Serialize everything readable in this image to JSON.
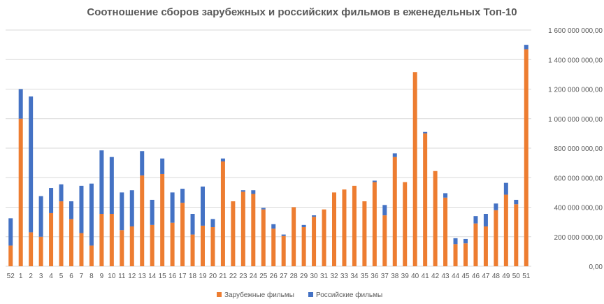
{
  "chart_data": {
    "type": "bar",
    "stacked": true,
    "title": "Соотношение сборов зарубежных и российских фильмов в еженедельных Топ-10",
    "xlabel": "",
    "ylabel": "",
    "ylim": [
      0,
      1600000000
    ],
    "y_ticks": [
      0,
      200000000,
      400000000,
      600000000,
      800000000,
      1000000000,
      1200000000,
      1400000000,
      1600000000
    ],
    "y_tick_labels": [
      "0,00",
      "200 000 000,00",
      "400 000 000,00",
      "600 000 000,00",
      "800 000 000,00",
      "1 000 000 000,00",
      "1 200 000 000,00",
      "1 400 000 000,00",
      "1 600 000 000,00"
    ],
    "grid": true,
    "y_axis_position": "right",
    "legend_position": "bottom",
    "categories": [
      "52",
      "1",
      "2",
      "3",
      "4",
      "5",
      "6",
      "7",
      "8",
      "9",
      "10",
      "11",
      "12",
      "13",
      "14",
      "15",
      "16",
      "17",
      "18",
      "19",
      "20",
      "21",
      "22",
      "23",
      "24",
      "25",
      "26",
      "27",
      "28",
      "29",
      "30",
      "31",
      "32",
      "33",
      "34",
      "35",
      "36",
      "37",
      "38",
      "39",
      "40",
      "41",
      "42",
      "43",
      "44",
      "45",
      "46",
      "47",
      "48",
      "49",
      "50",
      "51"
    ],
    "series": [
      {
        "name": "Зарубежные фильмы",
        "color": "#ed7d31",
        "values": [
          140000000,
          1000000000,
          230000000,
          200000000,
          360000000,
          440000000,
          320000000,
          225000000,
          140000000,
          355000000,
          355000000,
          245000000,
          270000000,
          615000000,
          280000000,
          625000000,
          295000000,
          430000000,
          215000000,
          275000000,
          265000000,
          710000000,
          440000000,
          505000000,
          490000000,
          385000000,
          255000000,
          205000000,
          400000000,
          265000000,
          335000000,
          385000000,
          500000000,
          520000000,
          545000000,
          440000000,
          570000000,
          345000000,
          740000000,
          570000000,
          1315000000,
          900000000,
          645000000,
          465000000,
          150000000,
          155000000,
          290000000,
          270000000,
          380000000,
          485000000,
          420000000,
          1470000000
        ]
      },
      {
        "name": "Российские фильмы",
        "color": "#4472c4",
        "values": [
          185000000,
          200000000,
          920000000,
          275000000,
          170000000,
          115000000,
          120000000,
          320000000,
          420000000,
          430000000,
          385000000,
          255000000,
          245000000,
          165000000,
          170000000,
          105000000,
          205000000,
          95000000,
          140000000,
          265000000,
          55000000,
          20000000,
          0,
          10000000,
          25000000,
          10000000,
          30000000,
          10000000,
          0,
          15000000,
          10000000,
          0,
          0,
          0,
          0,
          0,
          10000000,
          70000000,
          25000000,
          0,
          0,
          10000000,
          0,
          30000000,
          40000000,
          30000000,
          50000000,
          85000000,
          45000000,
          80000000,
          30000000,
          30000000
        ]
      }
    ]
  }
}
